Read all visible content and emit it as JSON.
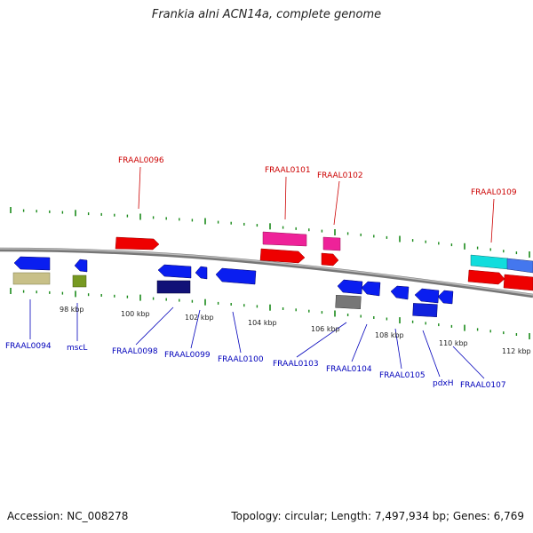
{
  "title": "Frankia alni ACN14a, complete genome",
  "accession": "Accession: NC_008278",
  "summary": "Topology: circular; Length: 7,497,934 bp; Genes: 6,769",
  "scale_labels": [
    "98 kbp",
    "100 kbp",
    "102 kbp",
    "104 kbp",
    "106 kbp",
    "108 kbp",
    "110 kbp",
    "112 kbp"
  ],
  "colors": {
    "forward_label": "#cc0000",
    "reverse_label": "#0000bb",
    "tick": "#1a8a1a",
    "backbone": "#888888"
  },
  "gene_labels_forward": [
    "FRAAL0096",
    "FRAAL0101",
    "FRAAL0102",
    "FRAAL0109"
  ],
  "gene_labels_reverse": [
    "FRAAL0094",
    "mscL",
    "FRAAL0098",
    "FRAAL0099",
    "FRAAL0100",
    "FRAAL0103",
    "FRAAL0104",
    "FRAAL0105",
    "pdxH",
    "FRAAL0107"
  ]
}
